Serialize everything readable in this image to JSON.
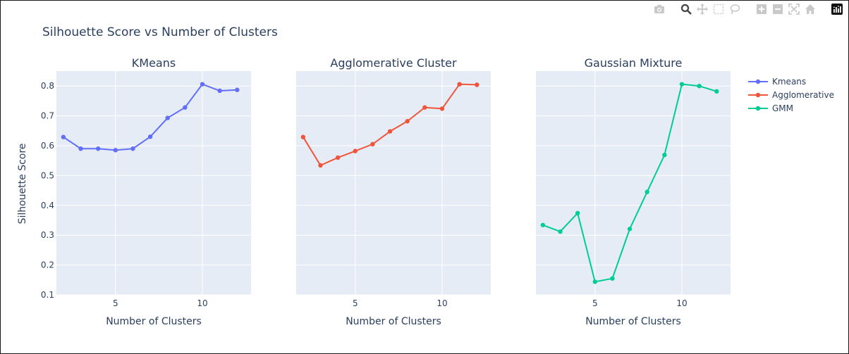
{
  "modebar": {
    "buttons": [
      "camera-icon",
      "zoom-icon",
      "pan-icon",
      "box-select-icon",
      "lasso-icon",
      "zoom-in-icon",
      "zoom-out-icon",
      "autoscale-icon",
      "reset-axes-icon",
      "plotly-logo-icon"
    ]
  },
  "chart_data": {
    "type": "line",
    "title": "Silhouette Score vs Number of Clusters",
    "ylabel": "Silhouette Score",
    "xlabel": "Number of Clusters",
    "ylim": [
      0.1,
      0.85
    ],
    "yticks": [
      "0.1",
      "0.2",
      "0.3",
      "0.4",
      "0.5",
      "0.6",
      "0.7",
      "0.8"
    ],
    "xticks": [
      "5",
      "10"
    ],
    "grid": true,
    "legend_position": "top-right",
    "x": [
      2,
      3,
      4,
      5,
      6,
      7,
      8,
      9,
      10,
      11,
      12
    ],
    "subplots": [
      {
        "title": "KMeans",
        "series": [
          {
            "name": "Kmeans",
            "color": "#636efa",
            "values": [
              0.629,
              0.59,
              0.59,
              0.585,
              0.59,
              0.63,
              0.693,
              0.728,
              0.806,
              0.784,
              0.787
            ]
          }
        ]
      },
      {
        "title": "Agglomerative Cluster",
        "series": [
          {
            "name": "Agglomerative",
            "color": "#ef553b",
            "values": [
              0.629,
              0.534,
              0.56,
              0.582,
              0.605,
              0.648,
              0.682,
              0.728,
              0.724,
              0.806,
              0.804
            ]
          }
        ]
      },
      {
        "title": "Gaussian Mixture",
        "series": [
          {
            "name": "GMM",
            "color": "#00cc96",
            "values": [
              0.334,
              0.312,
              0.374,
              0.144,
              0.155,
              0.321,
              0.445,
              0.569,
              0.806,
              0.8,
              0.782
            ]
          }
        ]
      }
    ]
  }
}
